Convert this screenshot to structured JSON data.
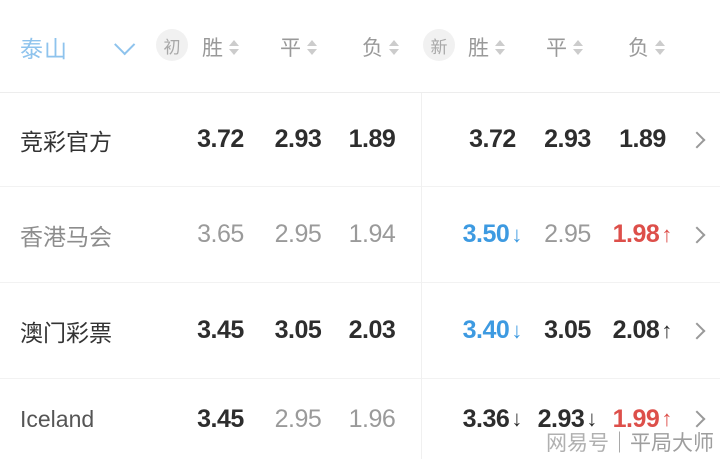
{
  "header": {
    "team": {
      "label": "泰山"
    },
    "badges": {
      "initial": "初",
      "new": "新"
    },
    "columns": [
      "胜",
      "平",
      "负"
    ]
  },
  "icons": {
    "down": "↓",
    "up": "↑"
  },
  "colors": {
    "accent_blue": "#3d9ae1",
    "team_blue": "#8ec3ed",
    "rise_red": "#dd4f4a",
    "dark_text": "#2d2d2d",
    "gray_text": "#9a9a9a"
  },
  "rows": [
    {
      "name": "竞彩官方",
      "name_style": "dark",
      "initial": [
        {
          "v": "3.72",
          "style": "dark"
        },
        {
          "v": "2.93",
          "style": "dark"
        },
        {
          "v": "1.89",
          "style": "dark"
        }
      ],
      "latest": [
        {
          "v": "3.72",
          "style": "dark"
        },
        {
          "v": "2.93",
          "style": "dark"
        },
        {
          "v": "1.89",
          "style": "dark"
        }
      ]
    },
    {
      "name": "香港马会",
      "name_style": "gray",
      "initial": [
        {
          "v": "3.65",
          "style": "gray"
        },
        {
          "v": "2.95",
          "style": "gray"
        },
        {
          "v": "1.94",
          "style": "gray"
        }
      ],
      "latest": [
        {
          "v": "3.50",
          "style": "blue",
          "arrow": "down",
          "arrow_style": "blue"
        },
        {
          "v": "2.95",
          "style": "gray"
        },
        {
          "v": "1.98",
          "style": "red",
          "arrow": "up",
          "arrow_style": "red"
        }
      ]
    },
    {
      "name": "澳门彩票",
      "name_style": "dark",
      "initial": [
        {
          "v": "3.45",
          "style": "dark"
        },
        {
          "v": "3.05",
          "style": "dark"
        },
        {
          "v": "2.03",
          "style": "dark"
        }
      ],
      "latest": [
        {
          "v": "3.40",
          "style": "blue",
          "arrow": "down",
          "arrow_style": "blue"
        },
        {
          "v": "3.05",
          "style": "dark"
        },
        {
          "v": "2.08",
          "style": "dark",
          "arrow": "up",
          "arrow_style": "dark"
        }
      ]
    },
    {
      "name": "Iceland",
      "name_style": "mid",
      "initial": [
        {
          "v": "3.45",
          "style": "dark"
        },
        {
          "v": "2.95",
          "style": "gray"
        },
        {
          "v": "1.96",
          "style": "gray"
        }
      ],
      "latest": [
        {
          "v": "3.36",
          "style": "dark",
          "arrow": "down",
          "arrow_style": "dark"
        },
        {
          "v": "2.93",
          "style": "dark",
          "arrow": "down",
          "arrow_style": "dark"
        },
        {
          "v": "1.99",
          "style": "red",
          "arrow": "up",
          "arrow_style": "red"
        }
      ]
    }
  ],
  "watermark": {
    "source": "网易号",
    "separator": "｜",
    "author": "平局大师"
  }
}
